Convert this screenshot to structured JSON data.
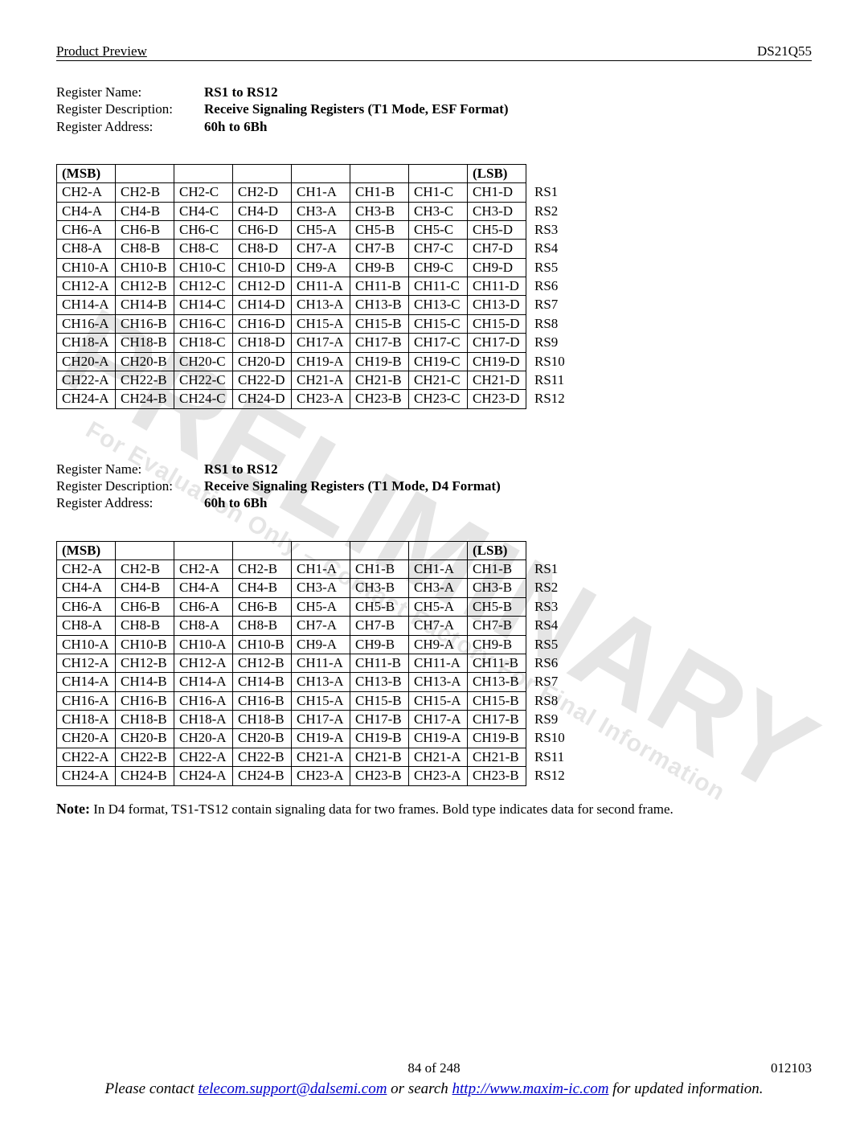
{
  "header": {
    "left": "Product Preview",
    "right": "DS21Q55"
  },
  "meta_labels": {
    "name": "Register Name:",
    "desc": "Register Description:",
    "addr": "Register Address:"
  },
  "section1": {
    "name": "RS1 to RS12",
    "desc": "Receive Signaling Registers (T1 Mode, ESF Format)",
    "addr": "60h to 6Bh",
    "msb": "(MSB)",
    "lsb": "(LSB)",
    "rows": [
      {
        "c": [
          "CH2-A",
          "CH2-B",
          "CH2-C",
          "CH2-D",
          "CH1-A",
          "CH1-B",
          "CH1-C",
          "CH1-D"
        ],
        "label": "RS1"
      },
      {
        "c": [
          "CH4-A",
          "CH4-B",
          "CH4-C",
          "CH4-D",
          "CH3-A",
          "CH3-B",
          "CH3-C",
          "CH3-D"
        ],
        "label": "RS2"
      },
      {
        "c": [
          "CH6-A",
          "CH6-B",
          "CH6-C",
          "CH6-D",
          "CH5-A",
          "CH5-B",
          "CH5-C",
          "CH5-D"
        ],
        "label": "RS3"
      },
      {
        "c": [
          "CH8-A",
          "CH8-B",
          "CH8-C",
          "CH8-D",
          "CH7-A",
          "CH7-B",
          "CH7-C",
          "CH7-D"
        ],
        "label": "RS4"
      },
      {
        "c": [
          "CH10-A",
          "CH10-B",
          "CH10-C",
          "CH10-D",
          "CH9-A",
          "CH9-B",
          "CH9-C",
          "CH9-D"
        ],
        "label": "RS5"
      },
      {
        "c": [
          "CH12-A",
          "CH12-B",
          "CH12-C",
          "CH12-D",
          "CH11-A",
          "CH11-B",
          "CH11-C",
          "CH11-D"
        ],
        "label": "RS6"
      },
      {
        "c": [
          "CH14-A",
          "CH14-B",
          "CH14-C",
          "CH14-D",
          "CH13-A",
          "CH13-B",
          "CH13-C",
          "CH13-D"
        ],
        "label": "RS7"
      },
      {
        "c": [
          "CH16-A",
          "CH16-B",
          "CH16-C",
          "CH16-D",
          "CH15-A",
          "CH15-B",
          "CH15-C",
          "CH15-D"
        ],
        "label": "RS8"
      },
      {
        "c": [
          "CH18-A",
          "CH18-B",
          "CH18-C",
          "CH18-D",
          "CH17-A",
          "CH17-B",
          "CH17-C",
          "CH17-D"
        ],
        "label": "RS9"
      },
      {
        "c": [
          "CH20-A",
          "CH20-B",
          "CH20-C",
          "CH20-D",
          "CH19-A",
          "CH19-B",
          "CH19-C",
          "CH19-D"
        ],
        "label": "RS10"
      },
      {
        "c": [
          "CH22-A",
          "CH22-B",
          "CH22-C",
          "CH22-D",
          "CH21-A",
          "CH21-B",
          "CH21-C",
          "CH21-D"
        ],
        "label": "RS11"
      },
      {
        "c": [
          "CH24-A",
          "CH24-B",
          "CH24-C",
          "CH24-D",
          "CH23-A",
          "CH23-B",
          "CH23-C",
          "CH23-D"
        ],
        "label": "RS12"
      }
    ]
  },
  "section2": {
    "name": "RS1 to RS12",
    "desc": "Receive Signaling Registers (T1 Mode, D4 Format)",
    "addr": "60h to 6Bh",
    "msb": "(MSB)",
    "lsb": "(LSB)",
    "bold_cols": [
      2,
      3,
      6,
      7
    ],
    "rows": [
      {
        "c": [
          "CH2-A",
          "CH2-B",
          "CH2-A",
          "CH2-B",
          "CH1-A",
          "CH1-B",
          "CH1-A",
          "CH1-B"
        ],
        "label": "RS1"
      },
      {
        "c": [
          "CH4-A",
          "CH4-B",
          "CH4-A",
          "CH4-B",
          "CH3-A",
          "CH3-B",
          "CH3-A",
          "CH3-B"
        ],
        "label": "RS2"
      },
      {
        "c": [
          "CH6-A",
          "CH6-B",
          "CH6-A",
          "CH6-B",
          "CH5-A",
          "CH5-B",
          "CH5-A",
          "CH5-B"
        ],
        "label": "RS3"
      },
      {
        "c": [
          "CH8-A",
          "CH8-B",
          "CH8-A",
          "CH8-B",
          "CH7-A",
          "CH7-B",
          "CH7-A",
          "CH7-B"
        ],
        "label": "RS4"
      },
      {
        "c": [
          "CH10-A",
          "CH10-B",
          "CH10-A",
          "CH10-B",
          "CH9-A",
          "CH9-B",
          "CH9-A",
          "CH9-B"
        ],
        "label": "RS5"
      },
      {
        "c": [
          "CH12-A",
          "CH12-B",
          "CH12-A",
          "CH12-B",
          "CH11-A",
          "CH11-B",
          "CH11-A",
          "CH11-B"
        ],
        "label": "RS6"
      },
      {
        "c": [
          "CH14-A",
          "CH14-B",
          "CH14-A",
          "CH14-B",
          "CH13-A",
          "CH13-B",
          "CH13-A",
          "CH13-B"
        ],
        "label": "RS7"
      },
      {
        "c": [
          "CH16-A",
          "CH16-B",
          "CH16-A",
          "CH16-B",
          "CH15-A",
          "CH15-B",
          "CH15-A",
          "CH15-B"
        ],
        "label": "RS8"
      },
      {
        "c": [
          "CH18-A",
          "CH18-B",
          "CH18-A",
          "CH18-B",
          "CH17-A",
          "CH17-B",
          "CH17-A",
          "CH17-B"
        ],
        "label": "RS9"
      },
      {
        "c": [
          "CH20-A",
          "CH20-B",
          "CH20-A",
          "CH20-B",
          "CH19-A",
          "CH19-B",
          "CH19-A",
          "CH19-B"
        ],
        "label": "RS10"
      },
      {
        "c": [
          "CH22-A",
          "CH22-B",
          "CH22-A",
          "CH22-B",
          "CH21-A",
          "CH21-B",
          "CH21-A",
          "CH21-B"
        ],
        "label": "RS11"
      },
      {
        "c": [
          "CH24-A",
          "CH24-B",
          "CH24-A",
          "CH24-B",
          "CH23-A",
          "CH23-B",
          "CH23-A",
          "CH23-B"
        ],
        "label": "RS12"
      }
    ]
  },
  "note": {
    "label": "Note:",
    "text": "  In D4 format, TS1-TS12 contain signaling data for two frames. Bold type indicates data for second frame."
  },
  "watermark": {
    "big": "PRELIMINARY",
    "small": "For Evaluation Only – Contact Factory For Final Information"
  },
  "footer": {
    "page": "84 of 248",
    "doc": "012103",
    "contact_pre": "Please contact ",
    "email": "telecom.support@dalsemi.com",
    "contact_mid": " or search ",
    "url": "http://www.maxim-ic.com",
    "contact_post": " for updated information."
  }
}
